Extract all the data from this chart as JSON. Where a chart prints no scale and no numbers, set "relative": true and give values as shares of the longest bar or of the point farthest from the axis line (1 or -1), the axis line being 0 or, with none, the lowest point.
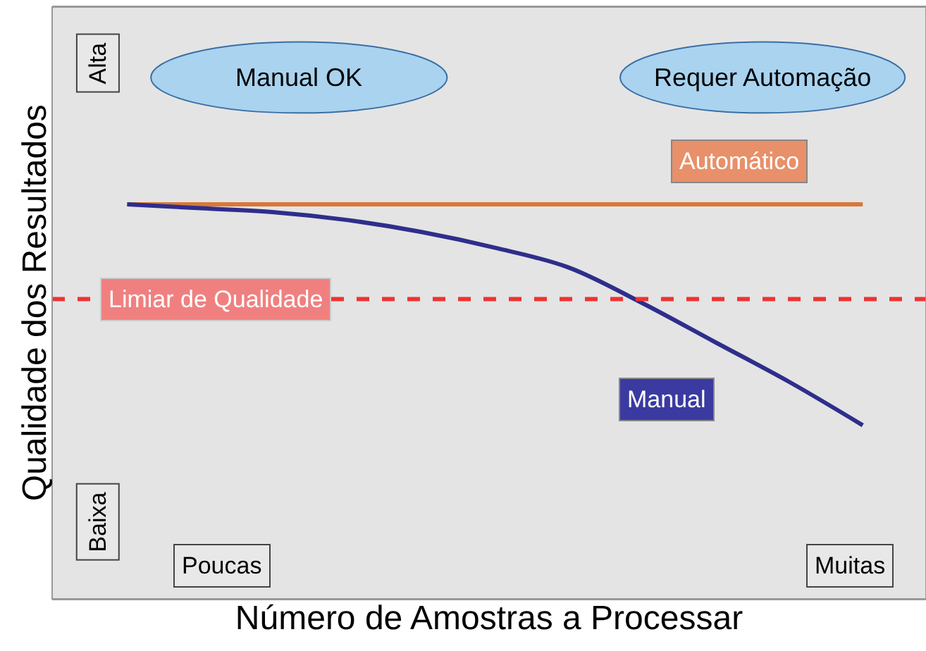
{
  "chart_data": {
    "type": "line",
    "relative": true,
    "xlabel": "Número de Amostras a Processar",
    "ylabel": "Qualidade dos Resultados",
    "categories": [
      null,
      null,
      null,
      null,
      null,
      null,
      null,
      null,
      null,
      null,
      null
    ],
    "series": [
      {
        "name": "Automático",
        "color": "#d9773a",
        "values": [
          1,
          1,
          1,
          1,
          1,
          1,
          1,
          1,
          1,
          1,
          1
        ]
      },
      {
        "name": "Manual",
        "color": "#2e2e8c",
        "values": [
          1,
          0.99,
          0.98,
          0.96,
          0.93,
          0.89,
          0.84,
          0.75,
          0.65,
          0.55,
          0.44
        ]
      }
    ],
    "ref_lines": [
      {
        "axis": "y",
        "value": 0.76,
        "label": "Limiar de Qualidade",
        "color": "#ee3333",
        "line_style": "dashed"
      }
    ],
    "annotations": [
      "Manual OK",
      "Requer Automação",
      "Alta",
      "Baixa",
      "Poucas",
      "Muitas"
    ],
    "grid": false,
    "legend": false,
    "marker": "none",
    "line_style": "solid"
  }
}
